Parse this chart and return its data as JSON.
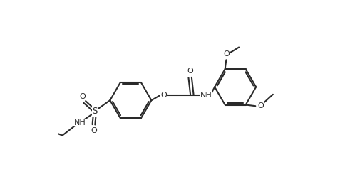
{
  "bg": "#ffffff",
  "lc": "#2a2a2a",
  "lw": 1.5,
  "fs": 8.0,
  "fig_w": 4.91,
  "fig_h": 2.66,
  "dpi": 100,
  "xlim": [
    0.0,
    10.0
  ],
  "ylim": [
    -2.8,
    3.2
  ]
}
